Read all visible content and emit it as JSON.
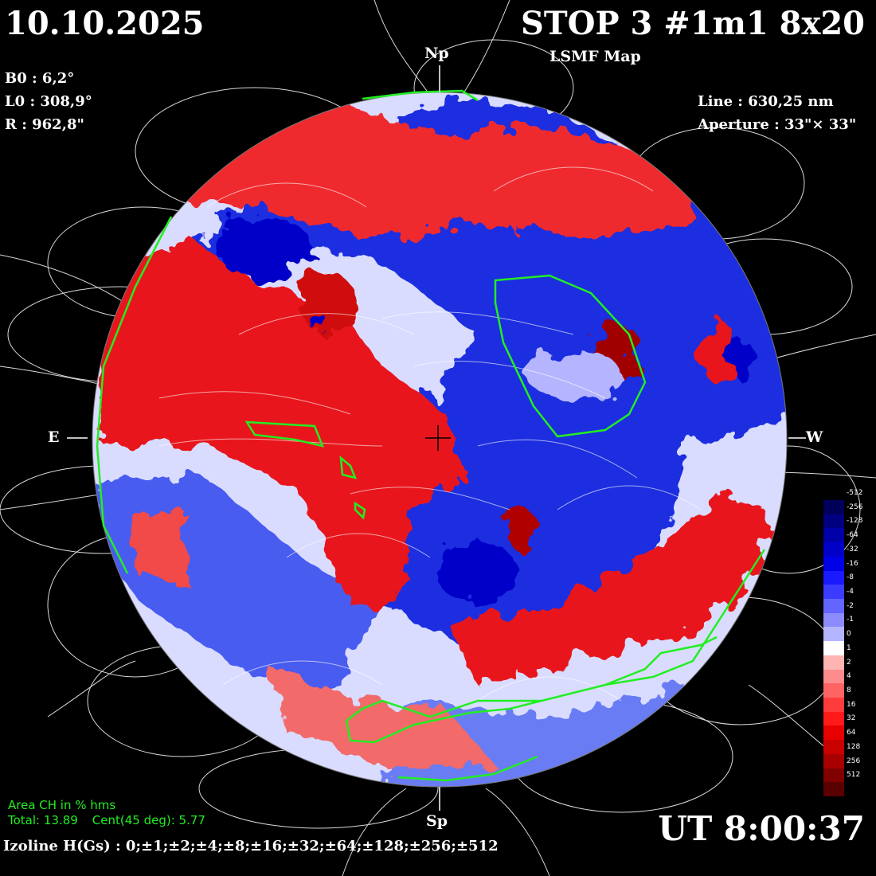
{
  "header": {
    "date": "10.10.2025",
    "title": "STOP 3 #1m1 8x20",
    "map_name": "LSMF  Map",
    "b0": "B0 : 6,2°",
    "l0": "L0 : 308,9°",
    "radius": "R  : 962,8\"",
    "line": "Line :  630,25 nm",
    "aperture": "Aperture : 33\"× 33\""
  },
  "markers": {
    "north": "Np",
    "south": "Sp",
    "east": "E",
    "west": "W"
  },
  "footer": {
    "ut": "UT 8:00:37",
    "isoline": "Izoline H(Gs) : 0;±1;±2;±4;±8;±16;±32;±64;±128;±256;±512"
  },
  "coronal_hole": {
    "title": "Area CH in % hms",
    "total": "Total: 13.89",
    "central": "Cent(45 deg): 5.77",
    "outline_color": "#22ee22"
  },
  "legend": {
    "labels": [
      "-512",
      "-256",
      "-128",
      "-64",
      "-32",
      "-16",
      "-8",
      "-4",
      "-2",
      "-1",
      "0",
      "1",
      "2",
      "4",
      "8",
      "16",
      "32",
      "64",
      "128",
      "256",
      "512"
    ],
    "colors": [
      "#00005a",
      "#000080",
      "#0000a8",
      "#0000c8",
      "#0000e6",
      "#1a1aff",
      "#3c3cff",
      "#6464ff",
      "#8c8cff",
      "#b4b4ff",
      "#ffffff",
      "#ffb4b4",
      "#ff8c8c",
      "#ff6464",
      "#ff3c3c",
      "#ff1a1a",
      "#e60000",
      "#c80000",
      "#a80000",
      "#800000",
      "#5a0000"
    ]
  },
  "colors": {
    "positive": "#e8191e",
    "negative": "#1a2ee0",
    "background": "#000000",
    "field_lines": "#ffffff"
  }
}
